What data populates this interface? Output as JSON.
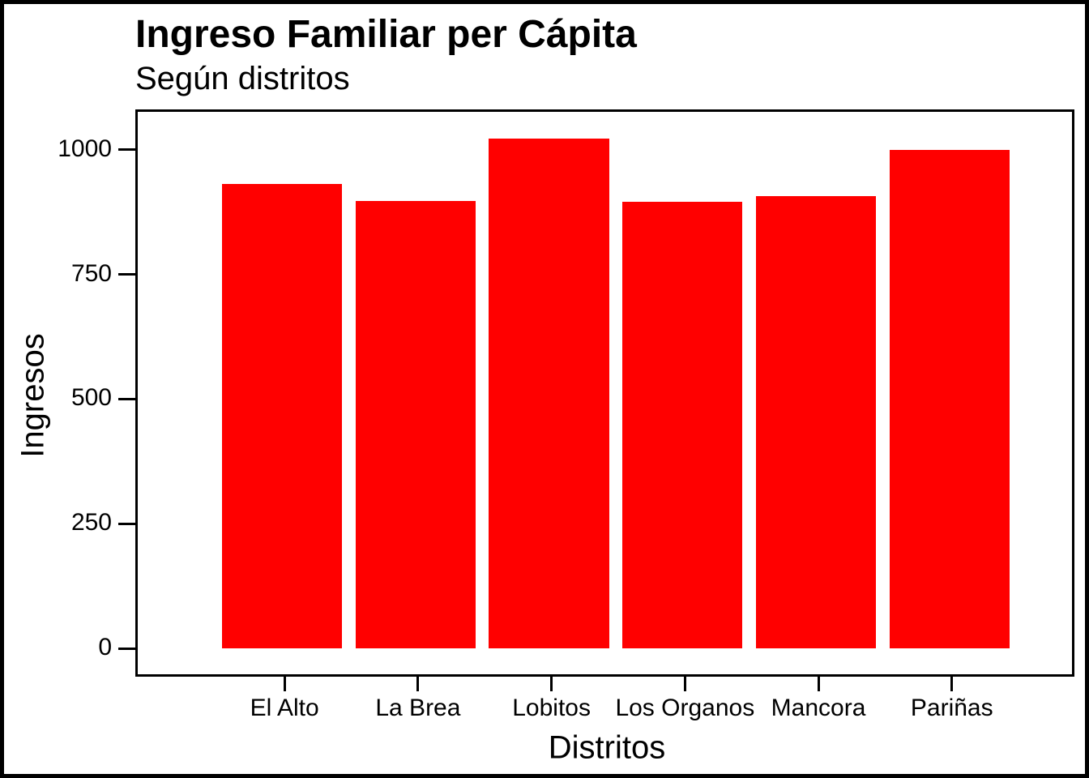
{
  "figure": {
    "title": "Ingreso Familiar per Cápita",
    "subtitle": "Según distritos"
  },
  "chart_data": {
    "type": "bar",
    "title": "Ingreso Familiar per Cápita",
    "subtitle": "Según distritos",
    "categories": [
      "El Alto",
      "La Brea",
      "Lobitos",
      "Los Organos",
      "Mancora",
      "Pariñas"
    ],
    "values": [
      931,
      897,
      1022,
      895,
      907,
      1000
    ],
    "xlabel": "Distritos",
    "ylabel": "Ingresos",
    "y_ticks": [
      0,
      250,
      500,
      750,
      1000
    ],
    "ylim": [
      -52,
      1076
    ],
    "bar_color": "#FF0000",
    "text_color": "#000000",
    "grid": false,
    "legend": false,
    "bar_width_fraction": 0.9,
    "outer_padding_slots": 0.6
  }
}
